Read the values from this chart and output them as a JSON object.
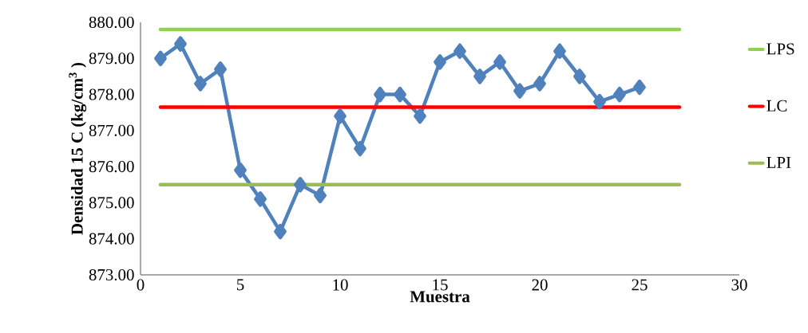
{
  "chart_data": {
    "type": "line",
    "xlabel": "Muestra",
    "ylabel": "Densidad 15 C (kg/cm$^{3}$ )",
    "xlim": [
      0,
      30
    ],
    "xticks": [
      0,
      5,
      10,
      15,
      20,
      25,
      30
    ],
    "ylim": [
      873,
      880
    ],
    "yticks": [
      {
        "value": 873,
        "label": "873.00"
      },
      {
        "value": 874,
        "label": "874.00"
      },
      {
        "value": 875,
        "label": "875.00"
      },
      {
        "value": 876,
        "label": "876.00"
      },
      {
        "value": 877,
        "label": "877.00"
      },
      {
        "value": 878,
        "label": "878.00"
      },
      {
        "value": 879,
        "label": "879.00"
      },
      {
        "value": 880,
        "label": "880.00"
      }
    ],
    "grid": false,
    "legend": "right",
    "line_style": "solid",
    "series": [
      {
        "color": "#4f81bd",
        "marker": "diamond",
        "x": [
          1,
          2,
          3,
          4,
          5,
          6,
          7,
          8,
          9,
          10,
          11,
          12,
          13,
          14,
          15,
          16,
          17,
          18,
          19,
          20,
          21,
          22,
          23,
          24,
          25
        ],
        "values": [
          879.0,
          879.4,
          878.3,
          878.7,
          875.9,
          875.1,
          874.2,
          875.5,
          875.2,
          877.4,
          876.5,
          878.0,
          878.0,
          877.4,
          878.9,
          879.2,
          878.5,
          878.9,
          878.1,
          878.3,
          879.2,
          878.5,
          877.8,
          878.0,
          878.2
        ]
      },
      {
        "name": "LPS",
        "color": "#92d050",
        "marker": "none",
        "x": [
          1,
          27
        ],
        "values": [
          879.8,
          879.8
        ]
      },
      {
        "name": "LC",
        "color": "#ff0000",
        "marker": "none",
        "x": [
          1,
          27
        ],
        "values": [
          877.65,
          877.65
        ]
      },
      {
        "name": "LPI",
        "color": "#9bbb59",
        "marker": "none",
        "x": [
          1,
          27
        ],
        "values": [
          875.5,
          875.5
        ]
      }
    ]
  }
}
